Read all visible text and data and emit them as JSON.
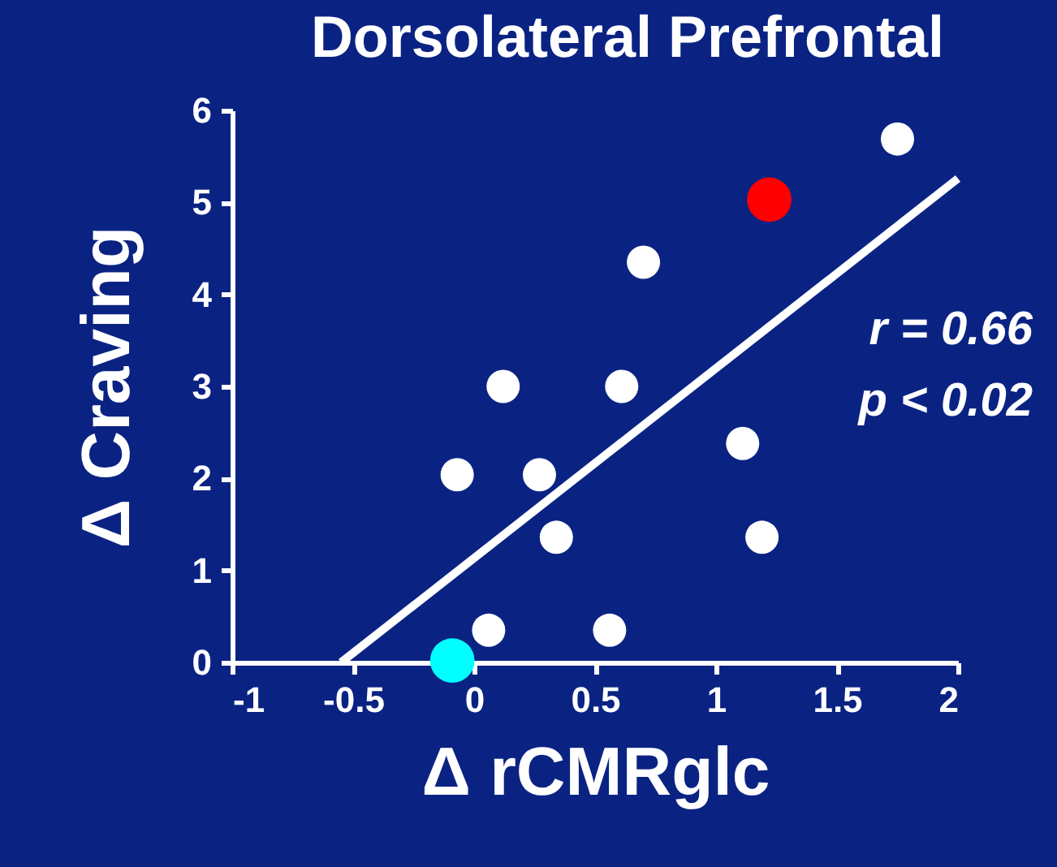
{
  "chart_data": {
    "type": "scatter",
    "title": "Dorsolateral Prefrontal",
    "xlabel": "Δ rCMRglc",
    "ylabel": "Δ Craving",
    "series": [
      {
        "color": "#ffffff",
        "x": [
          1.75,
          0.7,
          0.12,
          0.61,
          -0.07,
          0.27,
          1.11,
          0.34,
          1.19,
          0.06,
          0.56
        ],
        "values": [
          5.69,
          4.35,
          3.0,
          3.0,
          2.04,
          2.04,
          2.38,
          1.36,
          1.36,
          0.35,
          0.35
        ]
      },
      {
        "color": "#ff0000",
        "x": [
          1.22
        ],
        "values": [
          5.03
        ]
      },
      {
        "color": "#00ffff",
        "x": [
          -0.09
        ],
        "values": [
          0.02
        ]
      },
      {
        "type": "line",
        "marker": "none",
        "color": "#ffffff",
        "x": [
          -0.55,
          2.0
        ],
        "values": [
          0,
          5.26
        ]
      }
    ],
    "xlim": [
      -1,
      2
    ],
    "xticks": [
      -1,
      -0.5,
      0,
      0.5,
      1,
      1.5,
      2
    ],
    "ylim": [
      0,
      6
    ],
    "yticks": [
      0,
      1,
      2,
      3,
      4,
      5,
      6
    ],
    "annotations": [
      "r = 0.66",
      "p < 0.02"
    ],
    "grid": false,
    "marker": "circle",
    "line_style": "solid"
  }
}
